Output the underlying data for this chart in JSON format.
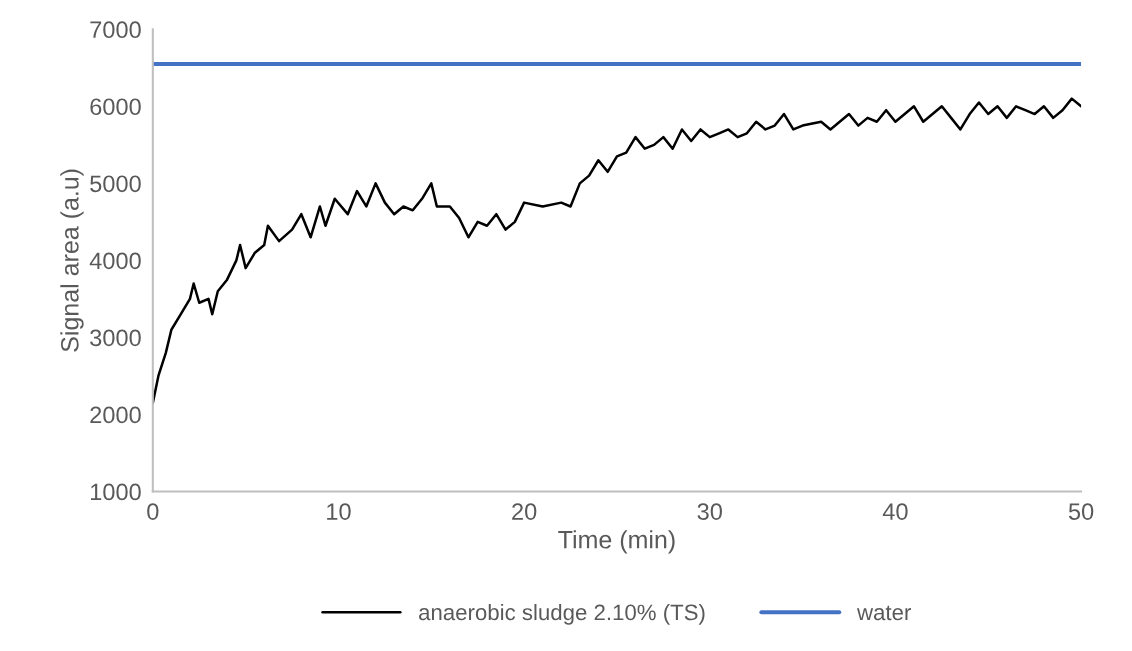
{
  "chart_data": {
    "type": "line",
    "xlabel": "Time (min)",
    "ylabel": "Signal area (a.u)",
    "xlim": [
      0,
      50
    ],
    "xticks": [
      0,
      10,
      20,
      30,
      40,
      50
    ],
    "ylim": [
      1000,
      7000
    ],
    "yticks": [
      1000,
      2000,
      3000,
      4000,
      5000,
      6000,
      7000
    ],
    "grid": false,
    "legend": "bottom",
    "marker": "none",
    "line_style": "solid",
    "series": [
      {
        "name": "anaerobic sludge 2.10% (TS)",
        "color": "#000000",
        "x": [
          0,
          0.3,
          0.7,
          1.0,
          1.5,
          2,
          2.2,
          2.5,
          3,
          3.2,
          3.5,
          4,
          4.5,
          4.7,
          5,
          5.5,
          6,
          6.2,
          6.8,
          7.5,
          8,
          8.5,
          9,
          9.3,
          9.8,
          10.5,
          11,
          11.5,
          12,
          12.5,
          13,
          13.5,
          14,
          14.5,
          15,
          15.3,
          16,
          16.5,
          17,
          17.5,
          18,
          18.5,
          19,
          19.5,
          20,
          21,
          22,
          22.5,
          23,
          23.5,
          24,
          24.5,
          25,
          25.5,
          26,
          26.5,
          27,
          27.5,
          28,
          28.5,
          29,
          29.5,
          30,
          30.5,
          31,
          31.5,
          32,
          32.5,
          33,
          33.5,
          34,
          34.5,
          35,
          36,
          36.5,
          37,
          37.5,
          38,
          38.5,
          39,
          39.5,
          40,
          40.5,
          41,
          41.5,
          42,
          42.5,
          43,
          43.5,
          44,
          44.5,
          45,
          45.5,
          46,
          46.5,
          47,
          47.5,
          48,
          48.5,
          49,
          49.5,
          50
        ],
        "values": [
          2150,
          2500,
          2800,
          3100,
          3300,
          3500,
          3700,
          3450,
          3500,
          3300,
          3600,
          3750,
          4000,
          4200,
          3900,
          4100,
          4200,
          4450,
          4250,
          4400,
          4600,
          4300,
          4700,
          4450,
          4800,
          4600,
          4900,
          4700,
          5000,
          4750,
          4600,
          4700,
          4650,
          4800,
          5000,
          4700,
          4700,
          4550,
          4300,
          4500,
          4450,
          4600,
          4400,
          4500,
          4750,
          4700,
          4750,
          4700,
          5000,
          5100,
          5300,
          5150,
          5350,
          5400,
          5600,
          5450,
          5500,
          5600,
          5450,
          5700,
          5550,
          5700,
          5600,
          5650,
          5700,
          5600,
          5650,
          5800,
          5700,
          5750,
          5900,
          5700,
          5750,
          5800,
          5700,
          5800,
          5900,
          5750,
          5850,
          5800,
          5950,
          5800,
          5900,
          6000,
          5800,
          5900,
          6000,
          5850,
          5700,
          5900,
          6050,
          5900,
          6000,
          5850,
          6000,
          5950,
          5900,
          6000,
          5850,
          5950,
          6100,
          6000
        ]
      },
      {
        "name": "water",
        "color": "#4472c4",
        "x": [
          0,
          50
        ],
        "values": [
          6550,
          6550
        ]
      }
    ]
  }
}
